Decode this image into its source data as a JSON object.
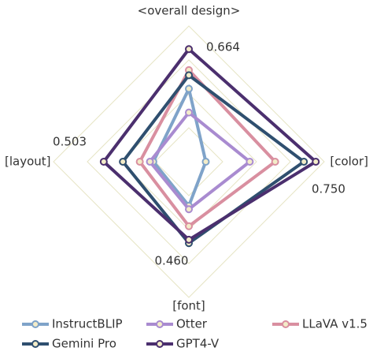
{
  "chart_data": {
    "type": "radar",
    "categories": [
      "<overall design>",
      "[color]",
      "[font]",
      "[layout]"
    ],
    "rlim": [
      0,
      0.8
    ],
    "rticks": [
      0.2,
      0.4,
      0.6,
      0.8
    ],
    "annotations": [
      "0.664",
      "0.750",
      "0.460",
      "0.503"
    ],
    "series": [
      {
        "name": "InstructBLIP",
        "color": "#7fa3c9",
        "values": [
          0.43,
          0.1,
          0.26,
          0.21
        ]
      },
      {
        "name": "Otter",
        "color": "#a98bd0",
        "values": [
          0.29,
          0.36,
          0.28,
          0.23
        ]
      },
      {
        "name": "LLaVA v1.5",
        "color": "#d98fa0",
        "values": [
          0.54,
          0.51,
          0.38,
          0.29
        ]
      },
      {
        "name": "Gemini Pro",
        "color": "#2f4f6f",
        "values": [
          0.51,
          0.68,
          0.48,
          0.39
        ]
      },
      {
        "name": "GPT4-V",
        "color": "#4b2f6e",
        "values": [
          0.664,
          0.75,
          0.46,
          0.503
        ]
      }
    ]
  }
}
